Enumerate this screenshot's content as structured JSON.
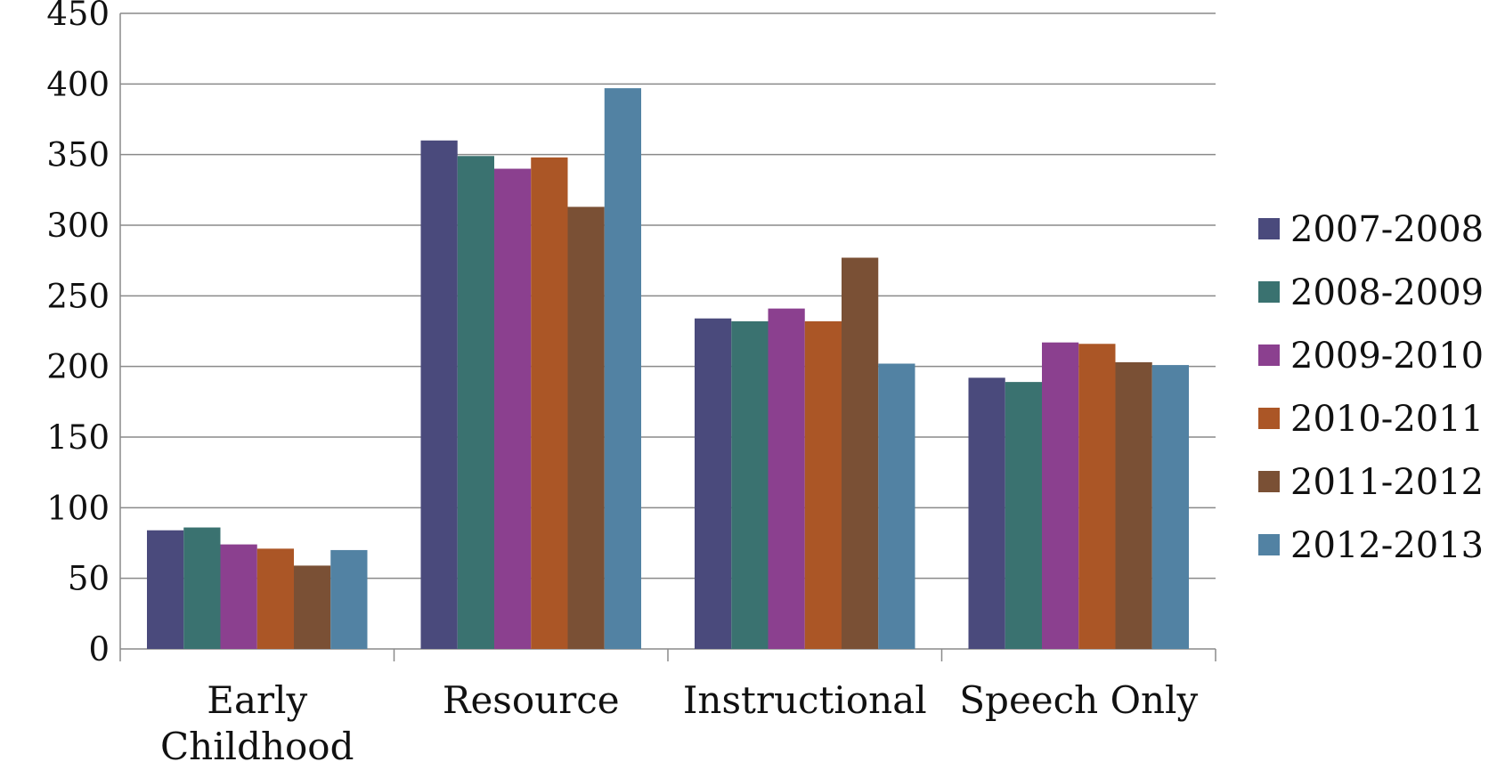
{
  "chart_data": {
    "type": "bar",
    "title": "",
    "xlabel": "",
    "ylabel": "",
    "ylim": [
      0,
      450
    ],
    "yticks": [
      "0",
      "50",
      "100",
      "150",
      "200",
      "250",
      "300",
      "350",
      "400",
      "450"
    ],
    "grid": true,
    "legend_position": "right",
    "categories": [
      [
        "Early",
        "Childhood"
      ],
      [
        "Resource"
      ],
      [
        "Instructional"
      ],
      [
        "Speech Only"
      ]
    ],
    "series": [
      {
        "name": "2007-2008",
        "color": "#4a4a7c",
        "values": [
          84,
          360,
          234,
          192
        ]
      },
      {
        "name": "2008-2009",
        "color": "#3a7270",
        "values": [
          86,
          349,
          232,
          189
        ]
      },
      {
        "name": "2009-2010",
        "color": "#8b408f",
        "values": [
          74,
          340,
          241,
          217
        ]
      },
      {
        "name": "2010-2011",
        "color": "#ab5626",
        "values": [
          71,
          348,
          232,
          216
        ]
      },
      {
        "name": "2011-2012",
        "color": "#7a5035",
        "values": [
          59,
          313,
          277,
          203
        ]
      },
      {
        "name": "2012-2013",
        "color": "#5282a3",
        "values": [
          70,
          397,
          202,
          201
        ]
      }
    ]
  }
}
